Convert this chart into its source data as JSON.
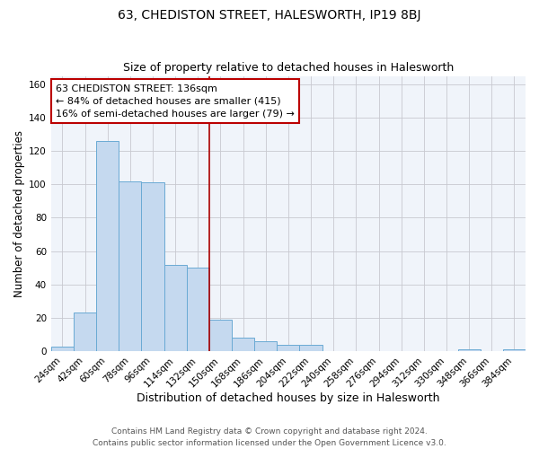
{
  "title": "63, CHEDISTON STREET, HALESWORTH, IP19 8BJ",
  "subtitle": "Size of property relative to detached houses in Halesworth",
  "xlabel": "Distribution of detached houses by size in Halesworth",
  "ylabel": "Number of detached properties",
  "bar_labels": [
    "24sqm",
    "42sqm",
    "60sqm",
    "78sqm",
    "96sqm",
    "114sqm",
    "132sqm",
    "150sqm",
    "168sqm",
    "186sqm",
    "204sqm",
    "222sqm",
    "240sqm",
    "258sqm",
    "276sqm",
    "294sqm",
    "312sqm",
    "330sqm",
    "348sqm",
    "366sqm",
    "384sqm"
  ],
  "bar_values": [
    3,
    23,
    126,
    102,
    101,
    52,
    50,
    19,
    8,
    6,
    4,
    4,
    0,
    0,
    0,
    0,
    0,
    0,
    1,
    0,
    1
  ],
  "bar_color": "#c5d9ef",
  "bar_edge_color": "#6aaad4",
  "vline_color": "#aa0000",
  "annotation_lines": [
    "63 CHEDISTON STREET: 136sqm",
    "← 84% of detached houses are smaller (415)",
    "16% of semi-detached houses are larger (79) →"
  ],
  "annotation_box_color": "#ffffff",
  "annotation_box_edge": "#bb0000",
  "ylim": [
    0,
    165
  ],
  "yticks": [
    0,
    20,
    40,
    60,
    80,
    100,
    120,
    140,
    160
  ],
  "footer_line1": "Contains HM Land Registry data © Crown copyright and database right 2024.",
  "footer_line2": "Contains public sector information licensed under the Open Government Licence v3.0.",
  "title_fontsize": 10,
  "subtitle_fontsize": 9,
  "xlabel_fontsize": 9,
  "ylabel_fontsize": 8.5,
  "tick_fontsize": 7.5,
  "annotation_fontsize": 8,
  "footer_fontsize": 6.5
}
